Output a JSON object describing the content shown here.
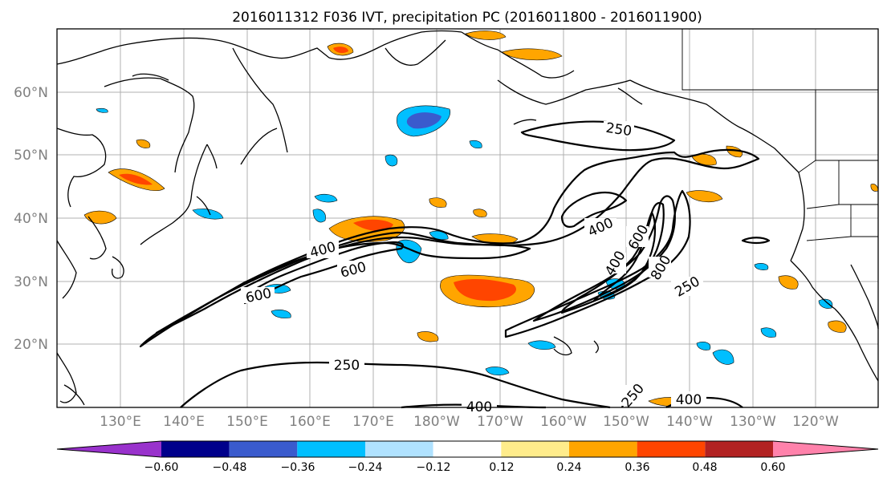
{
  "title": "2016011312 F036 IVT, precipitation PC (2016011800 - 2016011900)",
  "map": {
    "lat_labels": [
      "60°N",
      "50°N",
      "40°N",
      "30°N",
      "20°N"
    ],
    "lon_labels": [
      "130°E",
      "140°E",
      "150°E",
      "160°E",
      "170°E",
      "180°W",
      "170°W",
      "160°W",
      "150°W",
      "140°W",
      "130°W",
      "120°W"
    ],
    "ivt_contour_labels": [
      {
        "id": "lbl-250-gulf",
        "text": "250"
      },
      {
        "id": "lbl-400-west",
        "text": "400"
      },
      {
        "id": "lbl-600-west-a",
        "text": "600"
      },
      {
        "id": "lbl-600-west-b",
        "text": "600"
      },
      {
        "id": "lbl-400-east",
        "text": "400"
      },
      {
        "id": "lbl-600-east",
        "text": "600"
      },
      {
        "id": "lbl-400-east-b",
        "text": "400"
      },
      {
        "id": "lbl-800-east",
        "text": "800"
      },
      {
        "id": "lbl-250-east",
        "text": "250"
      },
      {
        "id": "lbl-250-south",
        "text": "250"
      },
      {
        "id": "lbl-400-south",
        "text": "400"
      },
      {
        "id": "lbl-400-south-b",
        "text": "400"
      },
      {
        "id": "lbl-250-south-b",
        "text": "250"
      }
    ]
  },
  "colorbar": {
    "ticks": [
      "−0.60",
      "−0.48",
      "−0.36",
      "−0.24",
      "−0.12",
      "0.12",
      "0.24",
      "0.36",
      "0.48",
      "0.60"
    ],
    "colors": [
      "#9932cc",
      "#00008b",
      "#3a5bcd",
      "#00bfff",
      "#b0e2ff",
      "#ffffff",
      "#ffec8b",
      "#ffa500",
      "#ff4500",
      "#b22222",
      "#ff82ab"
    ]
  }
}
